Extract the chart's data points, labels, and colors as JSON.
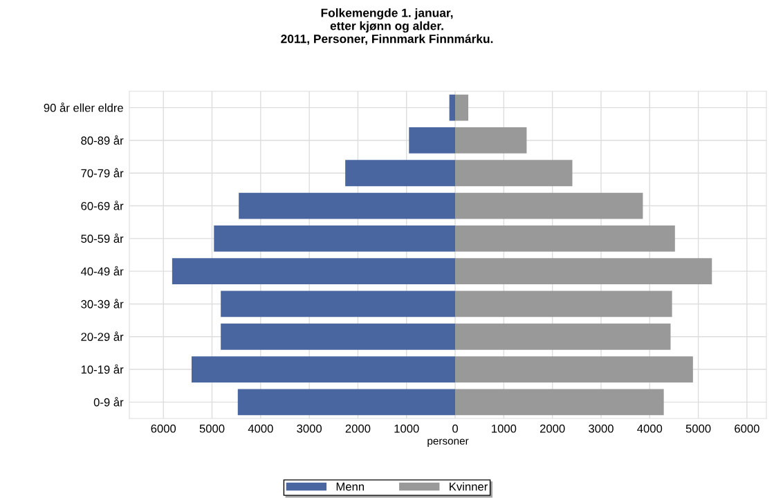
{
  "chart_data": {
    "type": "bar",
    "orientation": "horizontal",
    "title": "Folkemengde 1. januar,\netter kjønn og alder.\n2011, Personer, Finnmark Finnmárku.",
    "xlabel": "personer",
    "categories": [
      "90 år eller eldre",
      "80-89 år",
      "70-79 år",
      "60-69 år",
      "50-59 år",
      "40-49 år",
      "30-39 år",
      "20-29 år",
      "10-19 år",
      "0-9 år"
    ],
    "series": [
      {
        "name": "Menn",
        "color": "#4a66a0",
        "values": [
          -120,
          -950,
          -2260,
          -4450,
          -4960,
          -5820,
          -4820,
          -4820,
          -5420,
          -4470
        ]
      },
      {
        "name": "Kvinner",
        "color": "#999999",
        "values": [
          270,
          1470,
          2410,
          3860,
          4520,
          5280,
          4460,
          4430,
          4890,
          4290
        ]
      }
    ],
    "xlim": [
      -6700,
      6400
    ],
    "xticks": [
      {
        "value": -6000,
        "label": "6000"
      },
      {
        "value": -5000,
        "label": "5000"
      },
      {
        "value": -4000,
        "label": "4000"
      },
      {
        "value": -3000,
        "label": "3000"
      },
      {
        "value": -2000,
        "label": "2000"
      },
      {
        "value": -1000,
        "label": "1000"
      },
      0,
      1000,
      2000,
      3000,
      4000,
      5000,
      6000
    ],
    "stacked": true,
    "grid": true,
    "legend": "bottom"
  }
}
